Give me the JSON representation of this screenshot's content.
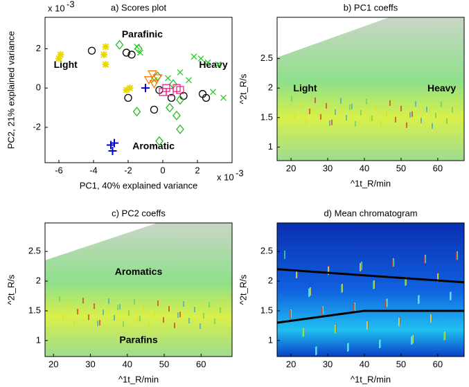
{
  "chart_data": [
    {
      "type": "scatter",
      "title": "a) Scores plot",
      "xlabel": "PC1, 40% explained variance",
      "ylabel": "PC2, 21% explained variance",
      "x_multiplier": "x 10",
      "x_exponent": "-3",
      "y_multiplier": "x 10",
      "y_exponent": "-3",
      "xlim": [
        -6.8,
        4
      ],
      "ylim": [
        -3.8,
        3.6
      ],
      "xticks": [
        -6,
        -4,
        -2,
        0,
        2
      ],
      "yticks": [
        -2,
        0,
        2
      ],
      "annotations": [
        "Parafinic",
        "Light",
        "Heavy",
        "Aromatic"
      ],
      "series": [
        {
          "marker": "circle",
          "color": "#000000",
          "x": [
            -4.1,
            -2.1,
            -1.8,
            -2.0,
            -0.5,
            0.5,
            1.2,
            2.3,
            2.5,
            -0.2
          ],
          "values": [
            1.9,
            1.8,
            1.7,
            -0.5,
            -1.1,
            -0.5,
            -0.4,
            -0.3,
            -0.5,
            -0.1
          ]
        },
        {
          "marker": "star",
          "color": "#e8d800",
          "x": [
            -5.9,
            -6.0,
            -3.3,
            -3.4,
            -3.3,
            -1.9,
            -2.1
          ],
          "values": [
            1.7,
            1.5,
            2.1,
            1.7,
            1.2,
            0.0,
            -0.1
          ]
        },
        {
          "marker": "plus",
          "color": "#0000cc",
          "x": [
            -3.0,
            -2.9,
            -2.8,
            -1.0
          ],
          "values": [
            -2.9,
            -3.2,
            -2.8,
            0.0
          ]
        },
        {
          "marker": "x",
          "color": "#22cc22",
          "x": [
            -1.5,
            -1.3,
            1.8,
            2.2,
            2.6,
            3.2,
            1.0,
            0.3,
            1.5,
            3.5,
            2.9,
            -0.5
          ],
          "values": [
            2.1,
            1.8,
            1.6,
            1.5,
            1.3,
            1.2,
            0.8,
            0.5,
            0.4,
            -0.5,
            -0.2,
            0.4
          ]
        },
        {
          "marker": "diamond",
          "color": "#22bb22",
          "x": [
            -2.5,
            -1.4,
            -0.3,
            0.6,
            1.0,
            0.8,
            1.0,
            -0.2,
            -1.5,
            0.4
          ],
          "values": [
            2.2,
            2.0,
            0.6,
            0.2,
            -0.6,
            -1.4,
            -2.1,
            -2.7,
            -1.2,
            -1.0
          ]
        },
        {
          "marker": "triangle",
          "color": "#ff7700",
          "x": [
            -0.6,
            -0.3,
            -0.5,
            -0.8
          ],
          "values": [
            0.7,
            0.5,
            0.2,
            0.4
          ]
        },
        {
          "marker": "square",
          "color": "#ee2288",
          "x": [
            0.0,
            0.4,
            0.8,
            1.0,
            0.2
          ],
          "values": [
            -0.2,
            -0.2,
            0.0,
            -0.1,
            0.0
          ]
        }
      ]
    },
    {
      "type": "image",
      "title": "b) PC1 coeffs",
      "xlabel": "^1t_R/min",
      "ylabel": "^2t_R/s",
      "colormap": "pc",
      "xlim": [
        16.2,
        67.2
      ],
      "ylim": [
        0.77,
        3.2
      ],
      "xticks": [
        20,
        30,
        40,
        50,
        60
      ],
      "yticks": [
        1,
        1.5,
        2,
        2.5
      ],
      "annotations": [
        "Light",
        "Heavy"
      ]
    },
    {
      "type": "image",
      "title": "c) PC2 coeffs",
      "xlabel": "^1t_R/min",
      "ylabel": "^2t_R/s",
      "colormap": "pc",
      "xlim": [
        17.7,
        68.4
      ],
      "ylim": [
        0.73,
        2.98
      ],
      "xticks": [
        20,
        30,
        40,
        50,
        60
      ],
      "yticks": [
        1,
        1.5,
        2,
        2.5
      ],
      "annotations": [
        "Aromatics",
        "Parafins"
      ]
    },
    {
      "type": "image",
      "title": "d) Mean chromatogram",
      "xlabel": "^1t_R/min",
      "ylabel": "^2t_R/s",
      "colormap": "jet",
      "xlim": [
        16.2,
        67.2
      ],
      "ylim": [
        0.73,
        2.98
      ],
      "xticks": [
        20,
        30,
        40,
        50,
        60
      ],
      "yticks": [
        1,
        1.5,
        2,
        2.5
      ],
      "series": [
        {
          "color": "#000000",
          "x": [
            16.2,
            67.2
          ],
          "values": [
            2.2,
            1.98
          ]
        },
        {
          "color": "#000000",
          "x": [
            16.2,
            40,
            67.2
          ],
          "values": [
            1.3,
            1.5,
            1.5
          ]
        }
      ]
    }
  ]
}
